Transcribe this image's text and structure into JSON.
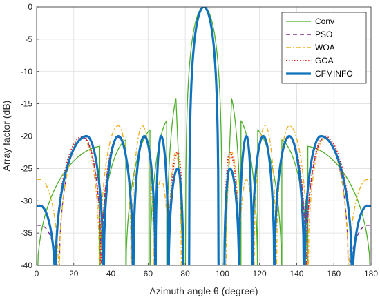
{
  "chart_data": {
    "type": "line",
    "title": "",
    "xlabel": "Azimuth angle θ (degree)",
    "ylabel": "Array factor (dB)",
    "xlim": [
      0,
      180
    ],
    "ylim": [
      -40,
      0
    ],
    "xticks": [
      0,
      20,
      40,
      60,
      80,
      100,
      120,
      140,
      160,
      180
    ],
    "yticks": [
      0,
      -5,
      -10,
      -15,
      -20,
      -25,
      -30,
      -35,
      -40
    ],
    "grid": true,
    "legend_position": "top-right",
    "series": [
      {
        "name": "Conv",
        "color": "#4daf2a",
        "style": "solid",
        "sidelobes": [
          [
            23,
            -21.5
          ],
          [
            37,
            -21.5
          ],
          [
            50,
            -20.4
          ],
          [
            64,
            -18.6
          ],
          [
            72,
            -17.2
          ],
          [
            77,
            -13.0
          ]
        ],
        "nulls": [
          0,
          34,
          48,
          61,
          70,
          75,
          80
        ],
        "mainlobe_halfwidth": 10
      },
      {
        "name": "PSO",
        "color": "#7e2f8e",
        "style": "dashed",
        "sidelobes": [
          [
            2,
            -33.8
          ],
          [
            25,
            -20.2
          ],
          [
            44,
            -20.2
          ],
          [
            58,
            -20.2
          ],
          [
            67,
            -20.2
          ],
          [
            76,
            -24.8
          ]
        ],
        "nulls": [
          12,
          35,
          52,
          64,
          71,
          79
        ],
        "mainlobe_halfwidth": 8
      },
      {
        "name": "WOA",
        "color": "#edb120",
        "style": "dashdot",
        "sidelobes": [
          [
            2,
            -26.7
          ],
          [
            25,
            -20.4
          ],
          [
            44,
            -18.4
          ],
          [
            57,
            -18.4
          ],
          [
            67,
            -26.7
          ],
          [
            75,
            -22.5
          ]
        ],
        "nulls": [
          12,
          34,
          51,
          63,
          71,
          78
        ],
        "mainlobe_halfwidth": 8
      },
      {
        "name": "GOA",
        "color": "#e8281b",
        "style": "dotted",
        "sidelobes": [
          [
            2,
            -30.7
          ],
          [
            25,
            -20.0
          ],
          [
            44,
            -20.0
          ],
          [
            58,
            -20.0
          ],
          [
            67,
            -20.0
          ],
          [
            76,
            -22.5
          ]
        ],
        "nulls": [
          10,
          35,
          52,
          64,
          71,
          79
        ],
        "mainlobe_halfwidth": 8
      },
      {
        "name": "CFMINFO",
        "color": "#0f72bd",
        "style": "solid-thick",
        "sidelobes": [
          [
            2,
            -30.8
          ],
          [
            27,
            -20.0
          ],
          [
            44,
            -20.0
          ],
          [
            58,
            -20.0
          ],
          [
            67,
            -20.0
          ],
          [
            76,
            -25.0
          ]
        ],
        "nulls": [
          10,
          36,
          52,
          64,
          71,
          79
        ],
        "mainlobe_halfwidth": 8
      }
    ]
  }
}
